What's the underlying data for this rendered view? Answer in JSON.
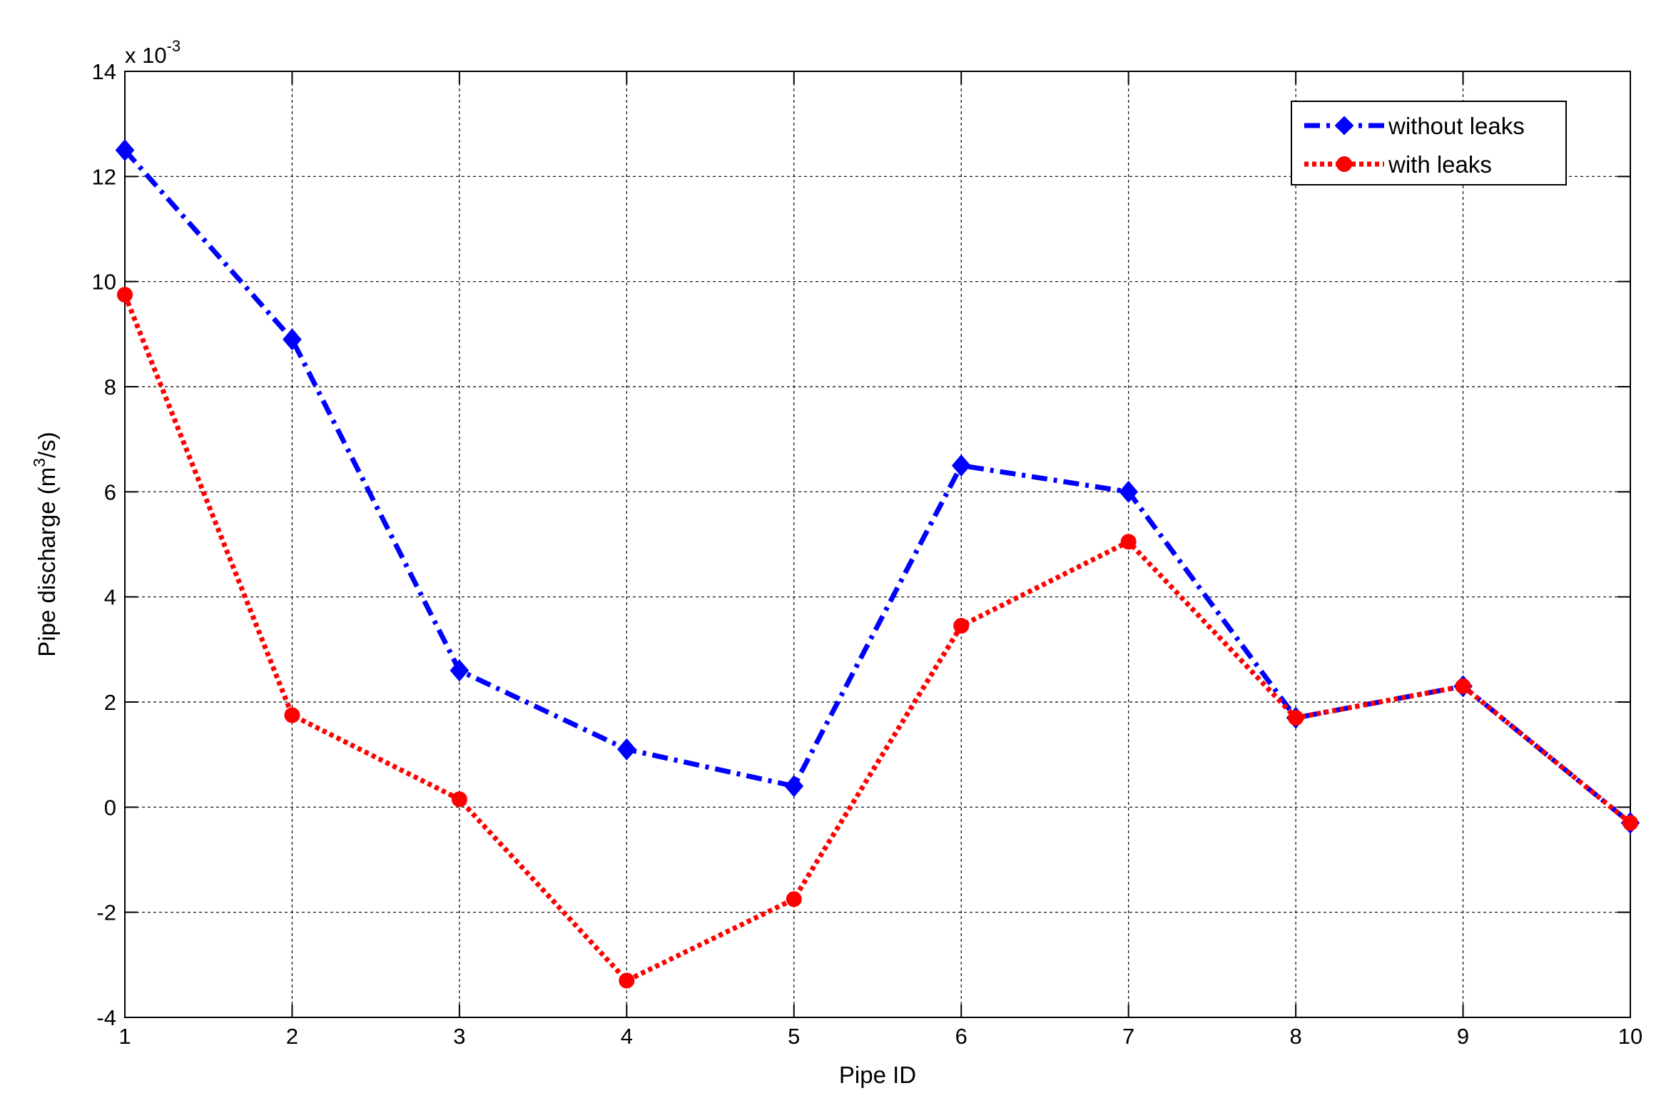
{
  "chart_data": {
    "type": "line",
    "xlabel": "Pipe ID",
    "ylabel_main": "Pipe discharge (m",
    "ylabel_sup": "3",
    "ylabel_tail": "/s)",
    "exponent_base": "x 10",
    "exponent_power": "-3",
    "x": [
      1,
      2,
      3,
      4,
      5,
      6,
      7,
      8,
      9,
      10
    ],
    "xlim": [
      1,
      10
    ],
    "ylim": [
      -4,
      14
    ],
    "xticks": [
      "1",
      "2",
      "3",
      "4",
      "5",
      "6",
      "7",
      "8",
      "9",
      "10"
    ],
    "yticks": [
      "-4",
      "-2",
      "0",
      "2",
      "4",
      "6",
      "8",
      "10",
      "12",
      "14"
    ],
    "ytick_values": [
      -4,
      -2,
      0,
      2,
      4,
      6,
      8,
      10,
      12,
      14
    ],
    "grid": true,
    "legend_position": "top-right",
    "series": [
      {
        "name": "without leaks",
        "color": "#0000ff",
        "marker": "diamond",
        "line_style": "dash-dot",
        "values": [
          12.5,
          8.9,
          2.6,
          1.1,
          0.4,
          6.5,
          6.0,
          1.7,
          2.3,
          -0.3
        ]
      },
      {
        "name": "with leaks",
        "color": "#ff0000",
        "marker": "circle",
        "line_style": "dotted",
        "values": [
          9.75,
          1.75,
          0.15,
          -3.3,
          -1.75,
          3.45,
          5.05,
          1.7,
          2.3,
          -0.3
        ]
      }
    ]
  }
}
